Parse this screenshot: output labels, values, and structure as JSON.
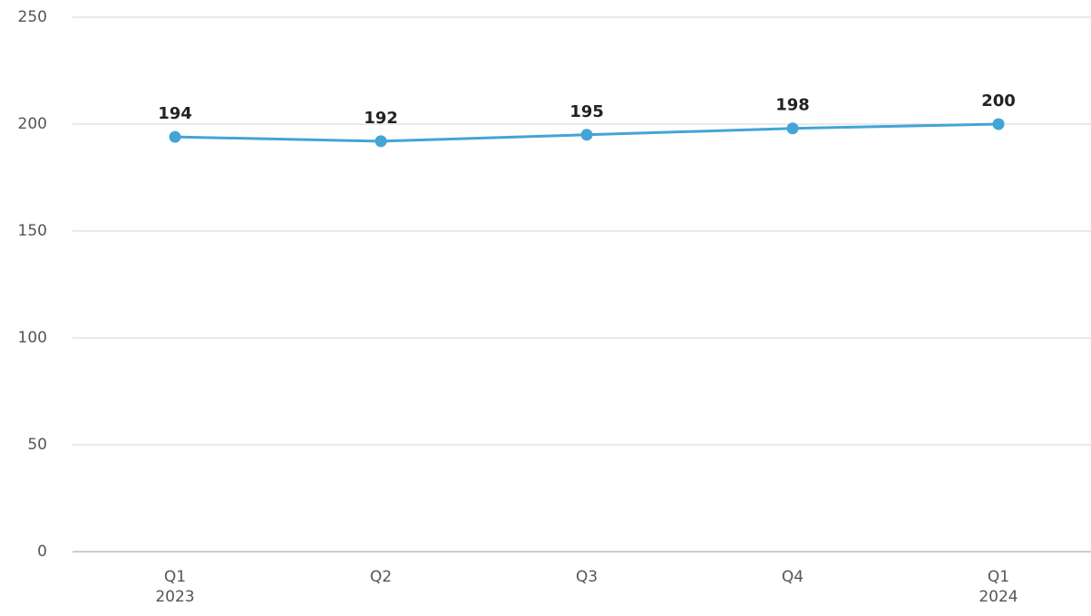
{
  "chart_data": {
    "type": "line",
    "categories": [
      "Q1\n2023",
      "Q2",
      "Q3",
      "Q4",
      "Q1\n2024"
    ],
    "series": [
      {
        "name": "Value",
        "color": "#42a5d5",
        "values": [
          194,
          192,
          195,
          198,
          200
        ]
      }
    ],
    "ylim": [
      0,
      250
    ],
    "yticks": [
      0,
      50,
      100,
      150,
      200,
      250
    ],
    "grid": true
  }
}
